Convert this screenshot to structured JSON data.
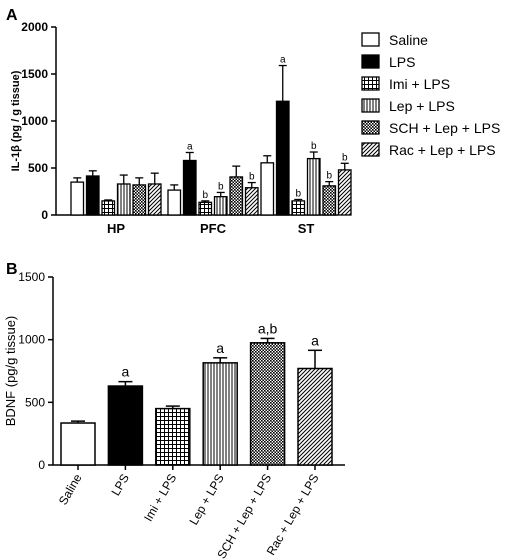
{
  "panel_labels": {
    "a": "A",
    "b": "B"
  },
  "legend": [
    {
      "label": "Saline",
      "pattern": "white"
    },
    {
      "label": "LPS",
      "pattern": "black"
    },
    {
      "label": "Imi + LPS",
      "pattern": "grid"
    },
    {
      "label": "Lep + LPS",
      "pattern": "vlines"
    },
    {
      "label": "SCH + Lep + LPS",
      "pattern": "dots"
    },
    {
      "label": "Rac + Lep + LPS",
      "pattern": "diag"
    }
  ],
  "chart_data": [
    {
      "type": "bar",
      "ylabel": "IL-1β (pg / g tissue)",
      "ylim": [
        0,
        2000
      ],
      "yticks": [
        "0",
        "500",
        "1000",
        "1500",
        "2000"
      ],
      "categories": [
        "HP",
        "PFC",
        "ST"
      ],
      "series": [
        {
          "name": "Saline",
          "values": [
            350,
            265,
            555
          ],
          "errors": [
            45,
            55,
            75
          ]
        },
        {
          "name": "LPS",
          "values": [
            415,
            580,
            1210
          ],
          "errors": [
            55,
            85,
            380
          ]
        },
        {
          "name": "Imi + LPS",
          "values": [
            150,
            135,
            150
          ],
          "errors": [
            10,
            15,
            15
          ]
        },
        {
          "name": "Lep + LPS",
          "values": [
            330,
            195,
            600
          ],
          "errors": [
            95,
            45,
            70
          ]
        },
        {
          "name": "SCH + Lep + LPS",
          "values": [
            320,
            405,
            310
          ],
          "errors": [
            75,
            115,
            45
          ]
        },
        {
          "name": "Rac + Lep + LPS",
          "values": [
            330,
            290,
            480
          ],
          "errors": [
            115,
            55,
            70
          ]
        }
      ],
      "annotations": [
        {
          "category": "PFC",
          "series": "LPS",
          "text": "a"
        },
        {
          "category": "PFC",
          "series": "Imi + LPS",
          "text": "b"
        },
        {
          "category": "PFC",
          "series": "Lep + LPS",
          "text": "b"
        },
        {
          "category": "PFC",
          "series": "Rac + Lep + LPS",
          "text": "b"
        },
        {
          "category": "ST",
          "series": "LPS",
          "text": "a"
        },
        {
          "category": "ST",
          "series": "Imi + LPS",
          "text": "b"
        },
        {
          "category": "ST",
          "series": "Lep + LPS",
          "text": "b"
        },
        {
          "category": "ST",
          "series": "SCH + Lep + LPS",
          "text": "b"
        },
        {
          "category": "ST",
          "series": "Rac + Lep + LPS",
          "text": "b"
        }
      ]
    },
    {
      "type": "bar",
      "ylabel": "BDNF (pg/g tissue)",
      "ylim": [
        0,
        1500
      ],
      "yticks": [
        "0",
        "500",
        "1000",
        "1500"
      ],
      "categories": [
        "Saline",
        "LPS",
        "Imi + LPS",
        "Lep + LPS",
        "SCH + Lep + LPS",
        "Rac + Lep + LPS"
      ],
      "values": [
        335,
        630,
        450,
        815,
        975,
        770
      ],
      "errors": [
        15,
        35,
        20,
        40,
        35,
        145
      ],
      "annotations": [
        "",
        "a",
        "",
        "a",
        "a,b",
        "a"
      ]
    }
  ]
}
